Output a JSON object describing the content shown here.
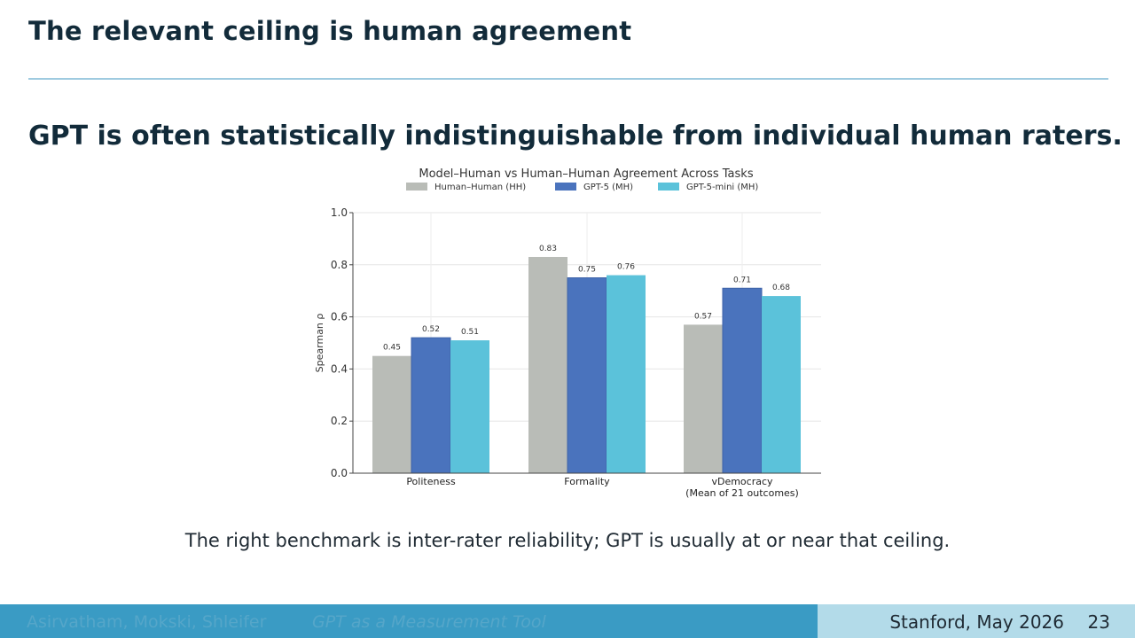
{
  "slide": {
    "frame_title": "The relevant ceiling is human agreement",
    "headline": "GPT is often statistically indistinguishable from individual human raters.",
    "caption": "The right benchmark is inter-rater reliability; GPT is usually at or near that ceiling."
  },
  "footer": {
    "authors": "Asirvatham, Mokski, Shleifer",
    "short_title": "GPT as a Measurement Tool",
    "venue": "Stanford, May 2026",
    "page": "23"
  },
  "chart_data": {
    "type": "bar",
    "title": "Model–Human vs Human–Human Agreement Across Tasks",
    "ylabel": "Spearman ρ",
    "xlabel": "",
    "ylim": [
      0,
      1.0
    ],
    "yticks": [
      "0.0",
      "0.2",
      "0.4",
      "0.6",
      "0.8",
      "1.0"
    ],
    "grid": true,
    "legend_position": "top",
    "categories": [
      "Politeness",
      "Formality",
      "vDemocracy"
    ],
    "category_sublabels": [
      "",
      "",
      "(Mean of 21 outcomes)"
    ],
    "series": [
      {
        "name": "Human–Human (HH)",
        "color": "#b9bcb7",
        "values": [
          0.45,
          0.83,
          0.57
        ]
      },
      {
        "name": "GPT-5 (MH)",
        "color": "#4a73bd",
        "values": [
          0.52,
          0.75,
          0.71
        ]
      },
      {
        "name": "GPT-5-mini (MH)",
        "color": "#5bc2da",
        "values": [
          0.51,
          0.76,
          0.68
        ]
      }
    ]
  }
}
